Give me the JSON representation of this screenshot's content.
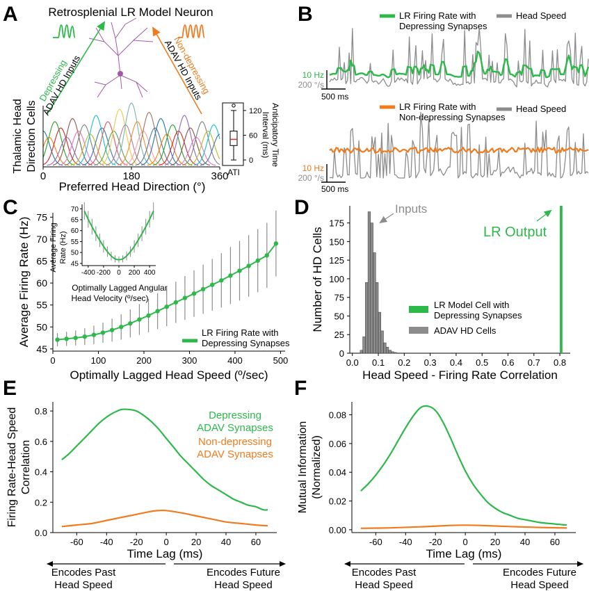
{
  "colors": {
    "green": "#2db84a",
    "orange": "#f07b1f",
    "gray": "#8c8c8c",
    "purple": "#a25aa8",
    "black": "#000000"
  },
  "panel_labels": [
    "A",
    "B",
    "C",
    "D",
    "E",
    "F"
  ],
  "panelA": {
    "title": "Retrosplenial LR Model Neuron",
    "arrow_left_line1": "Depressing",
    "arrow_left_line2": "ADAV HD Inputs",
    "arrow_right_line1": "Non-depressing",
    "arrow_right_line2": "ADAV HD Inputs",
    "ylabel_line1": "Thalamic Head",
    "ylabel_line2": "Direction Cells",
    "xlabel": "Preferred Head Direction (°)",
    "boxplot_label": "ATI",
    "boxplot_ylabel_line1": "Anticipatory Time",
    "boxplot_ylabel_line2": "Interval (ms)"
  },
  "panelB": {
    "legend_top_green": [
      "LR Firing Rate with",
      "Depressing Synapses"
    ],
    "legend_top_gray": "Head Speed",
    "legend_bot_orange": [
      "LR Firing Rate with",
      "Non-depressing Synapses"
    ],
    "legend_bot_gray": "Head Speed",
    "scale_rate_top": "10 Hz",
    "scale_speed_top": "200 °/s",
    "scale_time_top": "500 ms",
    "scale_rate_bot": "10 Hz",
    "scale_speed_bot": "200 °/s",
    "scale_time_bot": "500 ms"
  },
  "panelC": {
    "legend": [
      "LR Firing Rate with",
      "Depressing Synapses"
    ],
    "inset_ylabel_line1": "Average Firing",
    "inset_ylabel_line2": "Rate (Hz)",
    "inset_xlabel_line1": "Optimally Lagged Angular",
    "inset_xlabel_line2": "Head Velocity (º/sec)"
  },
  "panelD": {
    "annotation_inputs": "Inputs",
    "annotation_output": "LR Output",
    "legend_green": [
      "LR Model Cell with",
      "Depressing Synapses"
    ],
    "legend_gray": "ADAV HD Cells"
  },
  "panelE": {
    "label_dep": [
      "Depressing",
      "ADAV Synapses"
    ],
    "label_nondep": [
      "Non-depressing",
      "ADAV Synapses"
    ],
    "arrow_left": [
      "Encodes Past",
      "Head Speed"
    ],
    "arrow_right": [
      "Encodes Future",
      "Head Speed"
    ]
  },
  "panelF": {
    "arrow_left": [
      "Encodes Past",
      "Head Speed"
    ],
    "arrow_right": [
      "Encodes Future",
      "Head Speed"
    ]
  },
  "chart_data": [
    {
      "panel": "A",
      "type": "line",
      "xlabel": "Preferred Head Direction (°)",
      "ylabel": "Thalamic Head Direction Cells",
      "xticks": [
        "0",
        "180",
        "360"
      ],
      "xlim": [
        0,
        360
      ],
      "tuning_peaks_deg": [
        0,
        12,
        24,
        36,
        48,
        60,
        72,
        84,
        96,
        108,
        120,
        132,
        144,
        156,
        168,
        180,
        192,
        204,
        216,
        228,
        240,
        252,
        264,
        276,
        288,
        300,
        312,
        324,
        336,
        348,
        360
      ],
      "tuning_heights": [
        0.55,
        0.45,
        0.7,
        0.6,
        0.45,
        0.75,
        0.55,
        0.65,
        0.5,
        0.8,
        0.6,
        0.7,
        0.55,
        0.9,
        0.65,
        1.0,
        0.7,
        0.55,
        0.85,
        0.6,
        0.75,
        0.5,
        0.65,
        0.55,
        0.8,
        0.6,
        0.45,
        0.7,
        0.55,
        0.65,
        0.5
      ]
    },
    {
      "panel": "A-inset",
      "type": "box",
      "label": "ATI",
      "ylabel": "Anticipatory Time Interval (ms)",
      "yticks": [
        "0",
        "60",
        "120"
      ],
      "ylim": [
        -10,
        135
      ],
      "whisker_low": 0,
      "q1": 35,
      "median": 50,
      "mean": 52,
      "q3": 70,
      "whisker_high": 120,
      "outlier": 132
    },
    {
      "panel": "B",
      "type": "line",
      "duration_ms": 3900,
      "series": [
        {
          "name": "LR Firing Rate with Depressing Synapses",
          "color": "#2db84a"
        },
        {
          "name": "Head Speed",
          "color": "#8c8c8c"
        },
        {
          "name": "LR Firing Rate with Non-depressing Synapses",
          "color": "#f07b1f"
        }
      ]
    },
    {
      "panel": "C",
      "type": "line",
      "xlabel": "Optimally Lagged Head Speed (º/sec)",
      "ylabel": "Average Firing Rate (Hz)",
      "xlim": [
        0,
        510
      ],
      "ylim": [
        44.5,
        76
      ],
      "xticks": [
        0,
        100,
        200,
        300,
        400,
        500
      ],
      "yticks": [
        45,
        50,
        55,
        60,
        65,
        70,
        75
      ],
      "series": [
        {
          "name": "LR Firing Rate with Depressing Synapses",
          "x": [
            10,
            30,
            50,
            70,
            90,
            110,
            130,
            150,
            170,
            190,
            210,
            230,
            250,
            270,
            290,
            310,
            330,
            350,
            370,
            390,
            410,
            430,
            450,
            470,
            490
          ],
          "y": [
            47.1,
            47.3,
            47.5,
            47.8,
            48.2,
            48.7,
            49.3,
            50.0,
            50.8,
            51.7,
            52.6,
            53.6,
            54.6,
            55.6,
            56.6,
            57.6,
            58.6,
            59.6,
            60.6,
            61.7,
            62.8,
            63.9,
            65.1,
            66.3,
            69.0
          ],
          "err": [
            1.5,
            1.6,
            1.7,
            1.9,
            2.1,
            2.3,
            2.6,
            2.9,
            3.2,
            3.5,
            3.8,
            4.1,
            4.4,
            4.7,
            5.0,
            5.3,
            5.6,
            5.9,
            6.2,
            6.5,
            6.8,
            7.0,
            7.2,
            7.4,
            7.5
          ]
        }
      ]
    },
    {
      "panel": "C-inset",
      "type": "line",
      "xlabel": "Optimally Lagged Angular Head Velocity (º/sec)",
      "ylabel": "Average Firing Rate (Hz)",
      "xlim": [
        -480,
        480
      ],
      "ylim": [
        44,
        72
      ],
      "xticks": [
        -400,
        -200,
        0,
        200,
        400
      ],
      "yticks": [
        45,
        50,
        55,
        60,
        65,
        70
      ],
      "x": [
        -450,
        -400,
        -350,
        -300,
        -250,
        -200,
        -150,
        -100,
        -50,
        0,
        50,
        100,
        150,
        200,
        250,
        300,
        350,
        400,
        450
      ],
      "y": [
        69,
        65.2,
        61.8,
        58.6,
        55.6,
        52.8,
        50.4,
        48.4,
        47.1,
        46.7,
        47.1,
        48.4,
        50.4,
        52.8,
        55.6,
        58.6,
        61.8,
        65.2,
        69
      ],
      "err": [
        4,
        3.8,
        3.6,
        3.4,
        3.1,
        2.8,
        2.4,
        2.0,
        1.6,
        1.5,
        1.6,
        2.0,
        2.4,
        2.8,
        3.1,
        3.4,
        3.6,
        3.8,
        4
      ]
    },
    {
      "panel": "D",
      "type": "bar",
      "xlabel": "Head Speed - Firing Rate Correlation",
      "ylabel": "Number of HD Cells",
      "xlim": [
        -0.01,
        0.84
      ],
      "ylim": [
        0,
        198
      ],
      "xticks": [
        "0.0",
        "0.1",
        "0.2",
        "0.3",
        "0.4",
        "0.5",
        "0.6",
        "0.7",
        "0.8"
      ],
      "yticks": [
        0,
        25,
        50,
        75,
        100,
        125,
        150,
        175
      ],
      "bin_width": 0.01,
      "series": [
        {
          "name": "ADAV HD Cells",
          "bin_starts": [
            0.03,
            0.04,
            0.05,
            0.06,
            0.07,
            0.08,
            0.09,
            0.1,
            0.11,
            0.12,
            0.13,
            0.14,
            0.15,
            0.16
          ],
          "counts": [
            4,
            22,
            95,
            190,
            175,
            135,
            95,
            55,
            30,
            14,
            8,
            4,
            2,
            1
          ]
        },
        {
          "name": "LR Model Cell with Depressing Synapses",
          "bin_starts": [
            0.8
          ],
          "counts": [
            200
          ]
        }
      ]
    },
    {
      "panel": "E",
      "type": "line",
      "xlabel": "Time Lag (ms)",
      "ylabel": "Firing Rate-Head Speed Correlation",
      "xlim": [
        -76,
        74
      ],
      "ylim": [
        0,
        0.86
      ],
      "xticks": [
        -60,
        -40,
        -20,
        0,
        20,
        40,
        60
      ],
      "yticks": [
        "0.0",
        "0.2",
        "0.4",
        "0.6",
        "0.8"
      ],
      "series": [
        {
          "name": "Depressing ADAV Synapses",
          "x": [
            -70,
            -65,
            -60,
            -55,
            -50,
            -45,
            -40,
            -35,
            -30,
            -25,
            -20,
            -15,
            -10,
            -5,
            0,
            5,
            10,
            15,
            20,
            25,
            30,
            35,
            40,
            45,
            50,
            55,
            60,
            65,
            68
          ],
          "y": [
            0.48,
            0.52,
            0.57,
            0.62,
            0.67,
            0.72,
            0.76,
            0.79,
            0.81,
            0.81,
            0.8,
            0.77,
            0.73,
            0.68,
            0.62,
            0.56,
            0.5,
            0.45,
            0.4,
            0.35,
            0.31,
            0.28,
            0.25,
            0.22,
            0.2,
            0.18,
            0.17,
            0.15,
            0.15
          ]
        },
        {
          "name": "Non-depressing ADAV Synapses",
          "x": [
            -70,
            -60,
            -50,
            -40,
            -30,
            -20,
            -10,
            -5,
            0,
            10,
            20,
            30,
            40,
            50,
            60,
            68
          ],
          "y": [
            0.04,
            0.05,
            0.06,
            0.08,
            0.1,
            0.12,
            0.14,
            0.145,
            0.145,
            0.13,
            0.11,
            0.09,
            0.07,
            0.06,
            0.05,
            0.045
          ]
        }
      ]
    },
    {
      "panel": "F",
      "type": "line",
      "xlabel": "Time Lag (ms)",
      "ylabel": "Mutual Information (Normalized)",
      "xlim": [
        -76,
        74
      ],
      "ylim": [
        -0.002,
        0.089
      ],
      "xticks": [
        -60,
        -40,
        -20,
        0,
        20,
        40,
        60
      ],
      "yticks": [
        "0.00",
        "0.02",
        "0.04",
        "0.06",
        "0.08"
      ],
      "series": [
        {
          "name": "Depressing ADAV Synapses",
          "x": [
            -70,
            -65,
            -60,
            -55,
            -50,
            -45,
            -40,
            -35,
            -30,
            -25,
            -20,
            -15,
            -10,
            -5,
            0,
            5,
            10,
            15,
            20,
            25,
            30,
            35,
            40,
            45,
            50,
            55,
            60,
            65,
            68
          ],
          "y": [
            0.027,
            0.032,
            0.038,
            0.045,
            0.053,
            0.062,
            0.071,
            0.079,
            0.085,
            0.086,
            0.083,
            0.075,
            0.064,
            0.052,
            0.041,
            0.032,
            0.025,
            0.019,
            0.015,
            0.012,
            0.01,
            0.008,
            0.007,
            0.006,
            0.005,
            0.0045,
            0.004,
            0.0035,
            0.0033
          ]
        },
        {
          "name": "Non-depressing ADAV Synapses",
          "x": [
            -70,
            -50,
            -30,
            -10,
            0,
            10,
            30,
            50,
            68
          ],
          "y": [
            0.001,
            0.0013,
            0.002,
            0.003,
            0.0032,
            0.003,
            0.0022,
            0.0016,
            0.0012
          ]
        }
      ]
    }
  ]
}
